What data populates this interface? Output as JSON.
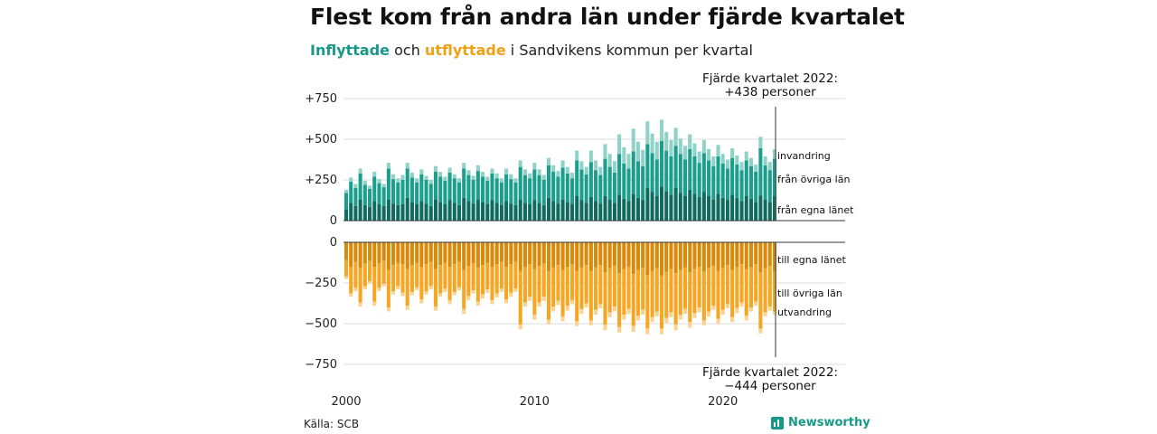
{
  "title": "Flest kom från andra län under fjärde kvartalet",
  "subtitle": {
    "in_word": "Inflyttade",
    "and_word": "och",
    "out_word": "utflyttade",
    "rest": "i Sandvikens kommun per kvartal"
  },
  "source": "Källa: SCB",
  "brand": "Newsworthy",
  "colors": {
    "in_local": "#0e6b5e",
    "in_other": "#1b9e8c",
    "in_immig": "#8fd3c8",
    "out_local": "#d98a0a",
    "out_other": "#f6a623",
    "out_emig": "#fad390"
  },
  "chart_data": {
    "type": "bar",
    "stacked": true,
    "x_start": "2000 Q1",
    "x_end": "2022 Q4",
    "x_ticks": [
      "2000",
      "2010",
      "2020"
    ],
    "y_ticks_top": [
      "+750",
      "+500",
      "+250",
      "0"
    ],
    "y_ticks_bottom": [
      "0",
      "−250",
      "−500",
      "−750"
    ],
    "ylim_top": [
      0,
      750
    ],
    "ylim_bottom": [
      -750,
      0
    ],
    "grid": true,
    "annotation_top": {
      "line1": "Fjärde kvartalet 2022:",
      "line2": "+438 personer"
    },
    "annotation_bottom": {
      "line1": "Fjärde kvartalet 2022:",
      "line2": "−444 personer"
    },
    "series_in": [
      {
        "name": "från egna länet",
        "values": [
          70,
          110,
          90,
          130,
          95,
          85,
          120,
          100,
          90,
          130,
          105,
          95,
          100,
          140,
          115,
          100,
          120,
          105,
          90,
          130,
          115,
          100,
          125,
          110,
          95,
          140,
          120,
          105,
          130,
          115,
          100,
          125,
          110,
          95,
          120,
          105,
          95,
          130,
          110,
          100,
          125,
          110,
          95,
          140,
          120,
          105,
          130,
          115,
          100,
          150,
          125,
          110,
          145,
          120,
          105,
          150,
          130,
          110,
          160,
          135,
          120,
          165,
          140,
          125,
          200,
          175,
          150,
          210,
          180,
          160,
          200,
          170,
          150,
          190,
          165,
          145,
          175,
          150,
          130,
          165,
          140,
          125,
          160,
          140,
          120,
          150,
          135,
          115,
          155,
          130,
          115,
          150
        ]
      },
      {
        "name": "från övriga län",
        "values": [
          100,
          130,
          110,
          160,
          125,
          110,
          150,
          130,
          115,
          190,
          150,
          140,
          150,
          180,
          150,
          135,
          165,
          145,
          135,
          170,
          155,
          145,
          170,
          150,
          140,
          180,
          160,
          145,
          175,
          155,
          145,
          165,
          150,
          140,
          165,
          150,
          140,
          200,
          170,
          160,
          190,
          170,
          155,
          200,
          180,
          165,
          195,
          175,
          160,
          220,
          190,
          175,
          215,
          190,
          175,
          230,
          200,
          185,
          250,
          215,
          200,
          260,
          225,
          210,
          270,
          240,
          225,
          280,
          250,
          235,
          260,
          240,
          225,
          250,
          230,
          210,
          240,
          220,
          205,
          230,
          210,
          195,
          225,
          205,
          190,
          220,
          200,
          185,
          290,
          210,
          195,
          230
        ]
      },
      {
        "name": "invandring",
        "values": [
          20,
          25,
          25,
          30,
          25,
          20,
          30,
          25,
          20,
          35,
          30,
          25,
          30,
          35,
          30,
          25,
          30,
          25,
          25,
          35,
          30,
          25,
          30,
          25,
          25,
          35,
          30,
          25,
          35,
          30,
          25,
          30,
          30,
          25,
          35,
          30,
          25,
          40,
          35,
          30,
          40,
          35,
          30,
          45,
          40,
          35,
          45,
          40,
          35,
          60,
          50,
          45,
          70,
          60,
          50,
          90,
          80,
          70,
          120,
          100,
          90,
          140,
          120,
          100,
          140,
          120,
          110,
          130,
          115,
          100,
          110,
          95,
          85,
          90,
          80,
          70,
          80,
          70,
          60,
          70,
          60,
          55,
          60,
          55,
          50,
          55,
          50,
          45,
          70,
          55,
          50,
          58
        ]
      }
    ],
    "series_out": [
      {
        "name": "till egna länet",
        "values": [
          -110,
          -150,
          -120,
          -160,
          -130,
          -115,
          -150,
          -130,
          -115,
          -170,
          -140,
          -125,
          -135,
          -165,
          -140,
          -125,
          -150,
          -135,
          -120,
          -165,
          -140,
          -125,
          -150,
          -135,
          -120,
          -170,
          -145,
          -130,
          -155,
          -140,
          -125,
          -150,
          -135,
          -120,
          -150,
          -135,
          -120,
          -175,
          -150,
          -135,
          -165,
          -145,
          -130,
          -175,
          -155,
          -140,
          -170,
          -150,
          -135,
          -175,
          -155,
          -140,
          -175,
          -155,
          -140,
          -185,
          -160,
          -145,
          -190,
          -165,
          -150,
          -195,
          -170,
          -155,
          -200,
          -175,
          -160,
          -205,
          -180,
          -165,
          -190,
          -170,
          -155,
          -185,
          -165,
          -150,
          -180,
          -160,
          -145,
          -175,
          -155,
          -140,
          -170,
          -150,
          -135,
          -165,
          -150,
          -135,
          -185,
          -160,
          -145,
          -180
        ]
      },
      {
        "name": "till övriga län",
        "values": [
          -100,
          -165,
          -160,
          -210,
          -140,
          -125,
          -215,
          -150,
          -140,
          -230,
          -160,
          -145,
          -175,
          -225,
          -165,
          -150,
          -200,
          -165,
          -150,
          -230,
          -175,
          -160,
          -205,
          -170,
          -155,
          -240,
          -185,
          -165,
          -210,
          -180,
          -165,
          -205,
          -180,
          -165,
          -200,
          -175,
          -165,
          -330,
          -220,
          -200,
          -280,
          -225,
          -205,
          -300,
          -240,
          -220,
          -285,
          -240,
          -220,
          -310,
          -255,
          -235,
          -305,
          -260,
          -240,
          -320,
          -270,
          -250,
          -330,
          -280,
          -260,
          -320,
          -280,
          -260,
          -330,
          -285,
          -265,
          -325,
          -285,
          -265,
          -315,
          -275,
          -255,
          -305,
          -270,
          -250,
          -300,
          -265,
          -245,
          -295,
          -260,
          -240,
          -290,
          -255,
          -235,
          -285,
          -250,
          -230,
          -345,
          -270,
          -250,
          -245
        ]
      },
      {
        "name": "utvandring",
        "values": [
          -15,
          -20,
          -20,
          -25,
          -20,
          -15,
          -25,
          -20,
          -15,
          -25,
          -20,
          -20,
          -20,
          -25,
          -20,
          -20,
          -25,
          -20,
          -20,
          -25,
          -20,
          -20,
          -25,
          -20,
          -20,
          -30,
          -25,
          -20,
          -25,
          -25,
          -20,
          -25,
          -25,
          -20,
          -25,
          -25,
          -20,
          -30,
          -25,
          -25,
          -30,
          -25,
          -25,
          -30,
          -30,
          -25,
          -30,
          -30,
          -25,
          -30,
          -30,
          -25,
          -30,
          -30,
          -25,
          -35,
          -30,
          -30,
          -35,
          -30,
          -30,
          -35,
          -30,
          -30,
          -35,
          -30,
          -30,
          -35,
          -30,
          -30,
          -35,
          -30,
          -30,
          -35,
          -30,
          -30,
          -30,
          -30,
          -25,
          -30,
          -30,
          -25,
          -30,
          -30,
          -25,
          -30,
          -25,
          -25,
          -30,
          -25,
          -25,
          -19
        ]
      }
    ]
  }
}
